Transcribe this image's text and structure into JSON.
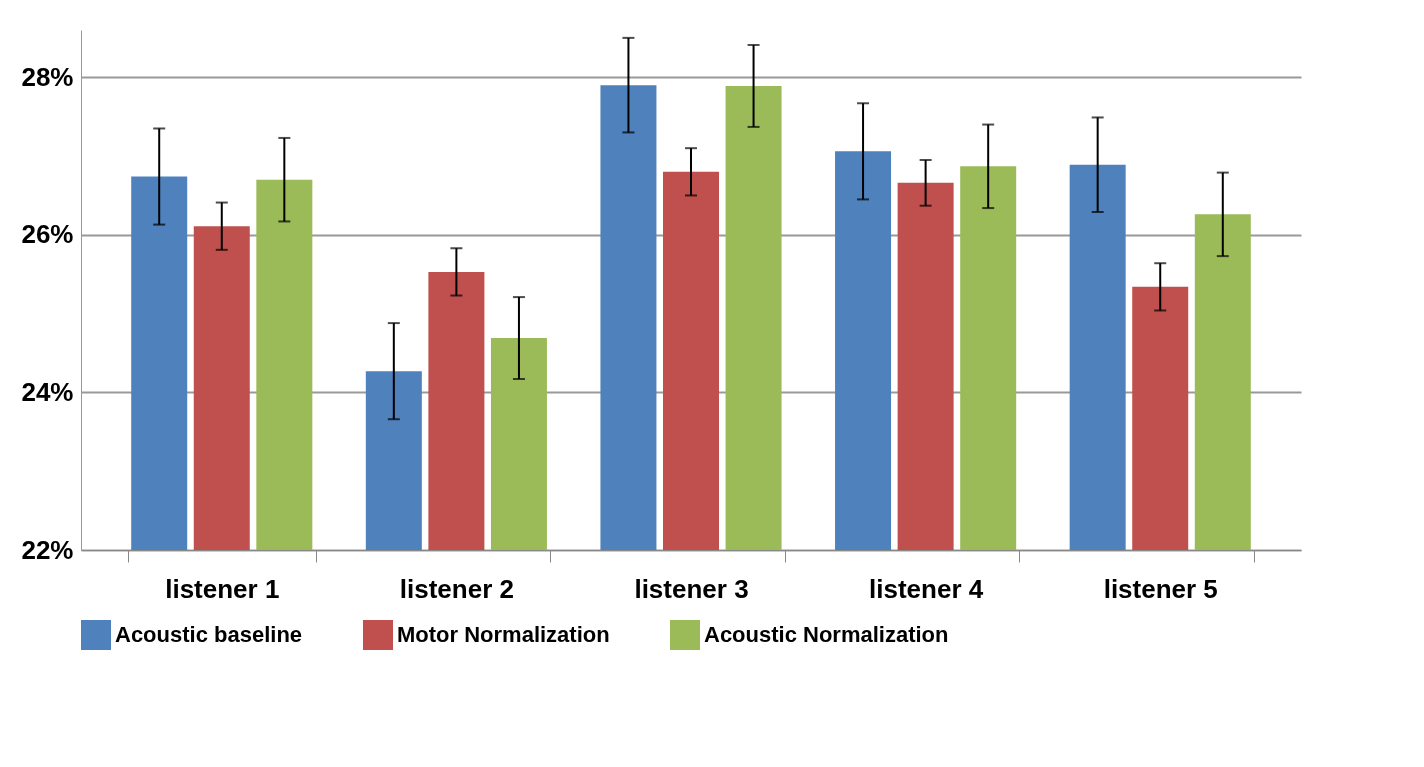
{
  "chart_data": {
    "type": "bar",
    "categories": [
      "listener 1",
      "listener 2",
      "listener 3",
      "listener 4",
      "listener 5"
    ],
    "series": [
      {
        "name": "Acoustic baseline",
        "color": "#4f81bd",
        "values": [
          26.74,
          24.27,
          27.9,
          27.06,
          26.89
        ],
        "errors": [
          0.61,
          0.61,
          0.6,
          0.61,
          0.6
        ]
      },
      {
        "name": "Motor Normalization",
        "color": "#c0504d",
        "values": [
          26.11,
          25.53,
          26.8,
          26.66,
          25.34
        ],
        "errors": [
          0.3,
          0.3,
          0.3,
          0.29,
          0.3
        ]
      },
      {
        "name": "Acoustic Normalization",
        "color": "#9bbb59",
        "values": [
          26.7,
          24.69,
          27.89,
          26.87,
          26.26
        ],
        "errors": [
          0.53,
          0.52,
          0.52,
          0.53,
          0.53
        ]
      }
    ],
    "ylim": [
      22,
      28.6
    ],
    "yticks": [
      {
        "value": 22,
        "label": "22%"
      },
      {
        "value": 24,
        "label": "24%"
      },
      {
        "value": 26,
        "label": "26%"
      },
      {
        "value": 28,
        "label": "28%"
      }
    ],
    "grid": "y",
    "legend": "bottom"
  }
}
